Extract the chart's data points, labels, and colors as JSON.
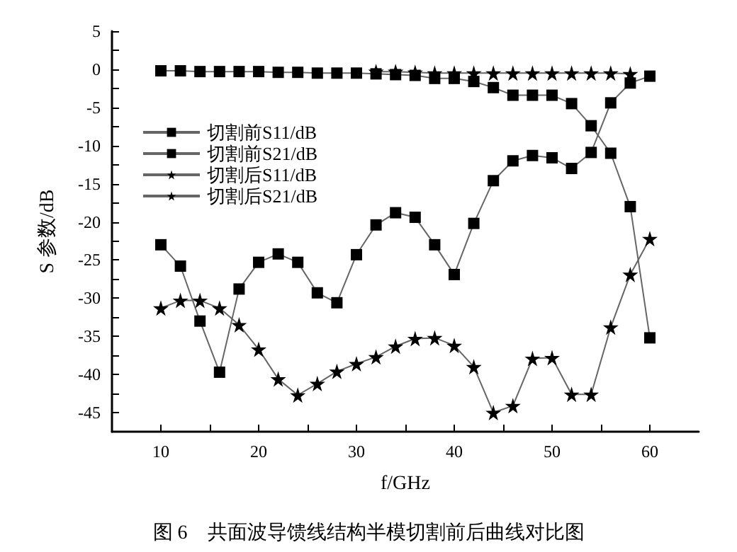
{
  "chart_data": {
    "type": "line",
    "xlabel": "f/GHz",
    "ylabel": "S 参数/dB",
    "annotations": [
      "图 6　共面波导馈线结构半模切割前后曲线对比图"
    ],
    "x": [
      10,
      12,
      14,
      16,
      18,
      20,
      22,
      24,
      26,
      28,
      30,
      32,
      34,
      36,
      38,
      40,
      42,
      44,
      46,
      48,
      50,
      52,
      54,
      56,
      58,
      60
    ],
    "xlim": [
      5,
      65
    ],
    "xticks": [
      10,
      20,
      30,
      40,
      50,
      60
    ],
    "ylim": [
      -47.5,
      5
    ],
    "yticks": [
      5,
      0,
      -5,
      -10,
      -15,
      -20,
      -25,
      -30,
      -35,
      -40,
      -45
    ],
    "grid": false,
    "legend": "top left",
    "line_style": "solid",
    "series": [
      {
        "name": "切割前S11/dB",
        "color": "#000000",
        "marker": "square",
        "values": [
          -23.0,
          -25.8,
          -33.0,
          -39.7,
          -28.8,
          -25.3,
          -24.2,
          -25.3,
          -29.3,
          -30.6,
          -24.3,
          -20.4,
          -18.8,
          -19.4,
          -23.0,
          -26.9,
          -20.2,
          -14.6,
          -12.0,
          -11.3,
          -11.6,
          -13.0,
          -10.9,
          -4.4,
          -1.8,
          -0.9
        ]
      },
      {
        "name": "切割前S21/dB",
        "color": "#000000",
        "marker": "square",
        "values": [
          -0.2,
          -0.2,
          -0.3,
          -0.3,
          -0.3,
          -0.3,
          -0.4,
          -0.4,
          -0.5,
          -0.5,
          -0.5,
          -0.6,
          -0.7,
          -0.8,
          -1.2,
          -1.2,
          -1.6,
          -2.4,
          -3.4,
          -3.4,
          -3.4,
          -4.5,
          -7.4,
          -11.0,
          -18.0,
          -35.2
        ]
      },
      {
        "name": "切割后S11/dB",
        "color": "#000000",
        "marker": "star",
        "values": [
          null,
          null,
          null,
          null,
          null,
          null,
          null,
          null,
          null,
          null,
          null,
          -0.3,
          -0.3,
          -0.4,
          -0.5,
          -0.5,
          -0.5,
          -0.5,
          -0.5,
          -0.5,
          -0.5,
          -0.5,
          -0.5,
          -0.5,
          -0.6,
          null
        ]
      },
      {
        "name": "切割后S21/dB",
        "color": "#000000",
        "marker": "star",
        "values": [
          -31.3,
          -30.3,
          -30.3,
          -31.3,
          -33.5,
          -36.7,
          -40.6,
          -42.7,
          -41.2,
          -39.6,
          -38.6,
          -37.7,
          -36.3,
          -35.3,
          -35.2,
          -36.2,
          -39.0,
          -45.0,
          -44.1,
          -37.9,
          -37.8,
          -42.6,
          -42.6,
          -33.8,
          -26.9,
          -22.2
        ]
      }
    ]
  }
}
